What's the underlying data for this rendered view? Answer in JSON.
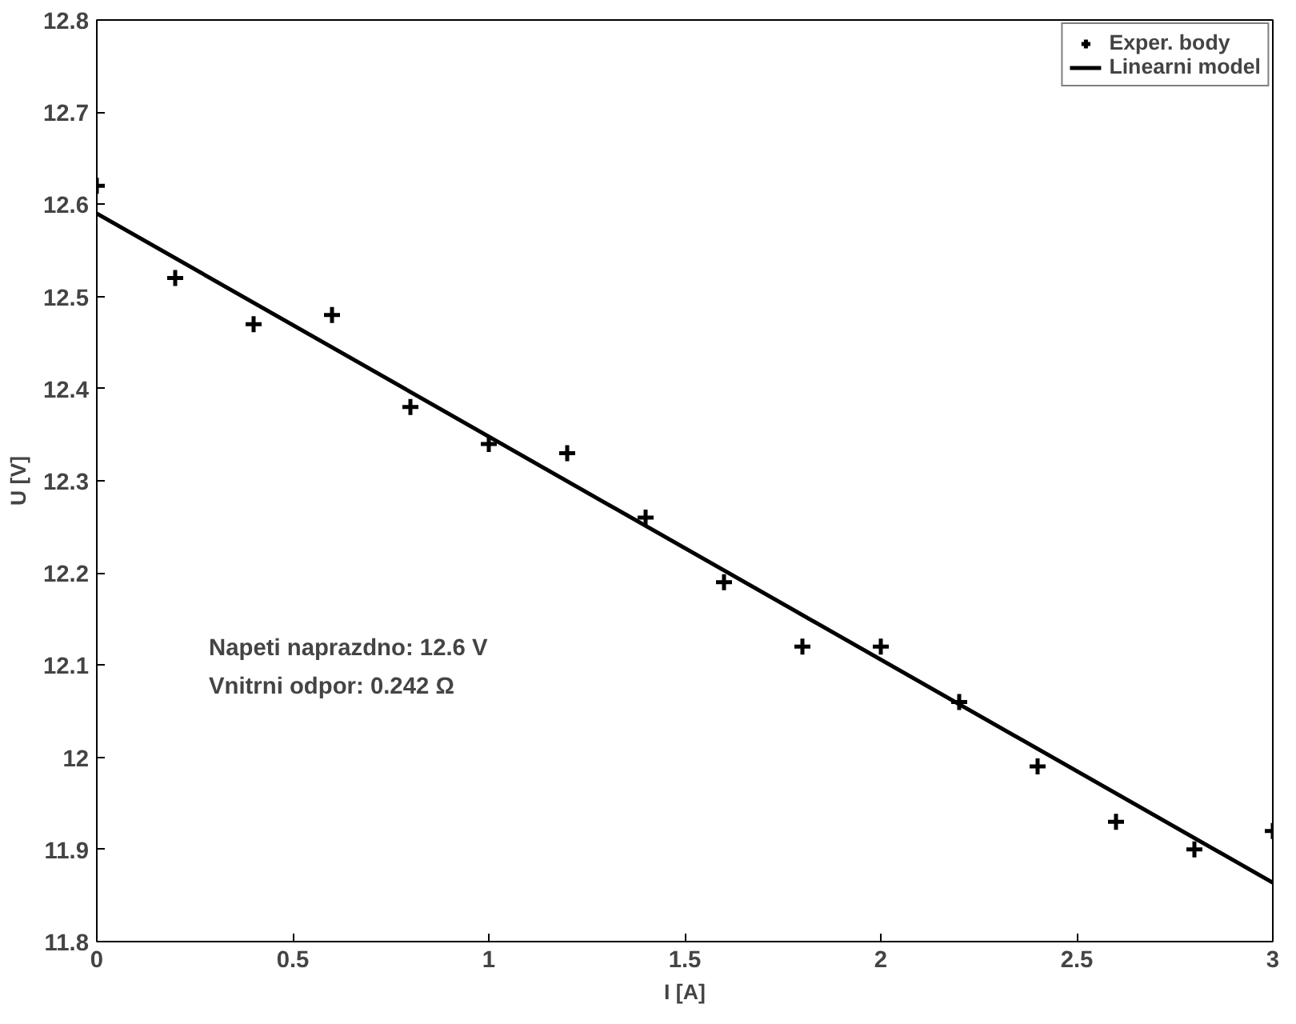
{
  "chart_data": {
    "type": "scatter",
    "xlabel": "I [A]",
    "ylabel": "U [V]",
    "xlim": [
      0,
      3
    ],
    "ylim": [
      11.8,
      12.8
    ],
    "xticks": [
      0,
      0.5,
      1,
      1.5,
      2,
      2.5,
      3
    ],
    "yticks": [
      11.8,
      11.9,
      12,
      12.1,
      12.2,
      12.3,
      12.4,
      12.5,
      12.6,
      12.7,
      12.8
    ],
    "series": [
      {
        "name": "Exper. body",
        "color": "#000000",
        "marker": "cross",
        "x": [
          0,
          0.2,
          0.4,
          0.6,
          0.8,
          1.0,
          1.2,
          1.4,
          1.6,
          1.8,
          2.0,
          2.2,
          2.4,
          2.6,
          2.8,
          3.0
        ],
        "values": [
          12.62,
          12.52,
          12.47,
          12.48,
          12.38,
          12.34,
          12.33,
          12.26,
          12.19,
          12.12,
          12.12,
          12.06,
          11.99,
          11.93,
          11.9,
          11.92
        ]
      },
      {
        "name": "Linearni model",
        "color": "#000000",
        "type": "line",
        "line_style": "solid",
        "x": [
          0,
          3
        ],
        "values": [
          12.59,
          11.864
        ]
      }
    ],
    "annotations": [
      "Napeti naprazdno: 12.6 V",
      "Vnitrni odpor: 0.242 Ω"
    ],
    "legend": "top right",
    "grid": false
  }
}
